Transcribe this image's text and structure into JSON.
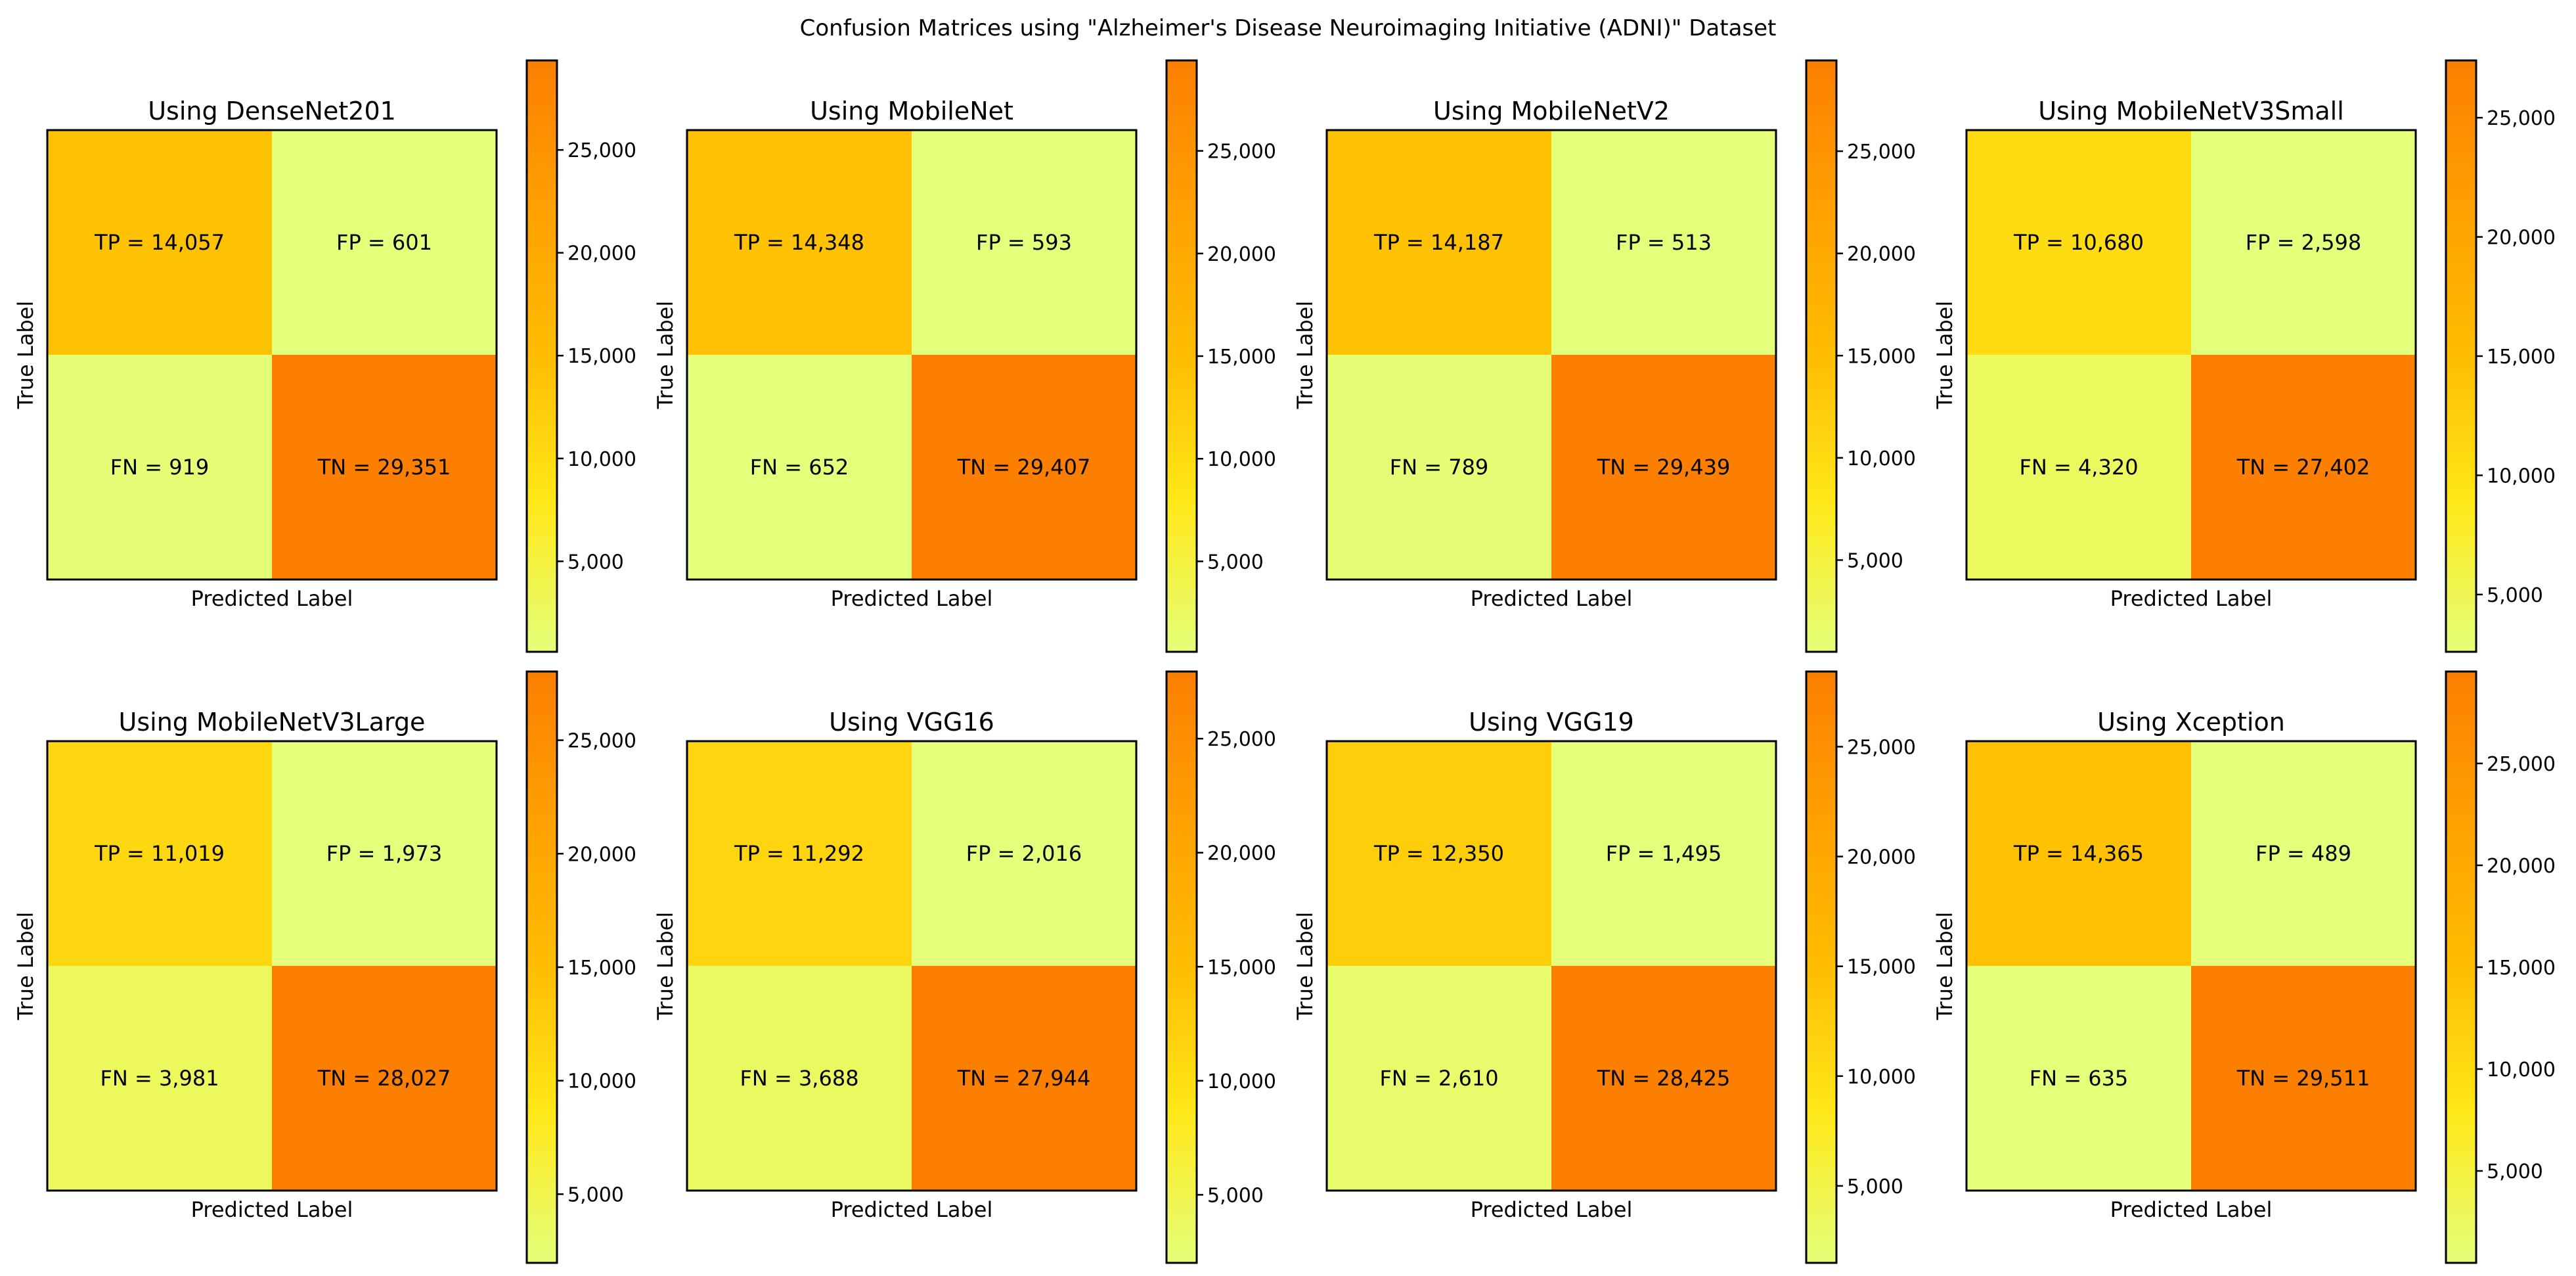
{
  "suptitle": "Confusion Matrices using \"Alzheimer's Disease Neuroimaging Initiative (ADNI)\" Dataset",
  "colormap": {
    "name": "Wistia",
    "stops": [
      "#e4ff7a",
      "#ffe81a",
      "#ffbd00",
      "#ffa000",
      "#fc7f00"
    ]
  },
  "chart_data": [
    {
      "type": "heatmap",
      "title": "Using DenseNet201",
      "xlabel": "Predicted Label",
      "ylabel": "True Label",
      "cells": [
        {
          "label": "TP",
          "value": 14057,
          "text": "TP = 14,057"
        },
        {
          "label": "FP",
          "value": 601,
          "text": "FP = 601"
        },
        {
          "label": "FN",
          "value": 919,
          "text": "FN = 919"
        },
        {
          "label": "TN",
          "value": 29351,
          "text": "TN = 29,351"
        }
      ],
      "colorbar_ticks": [
        {
          "value": 5000,
          "label": "5,000"
        },
        {
          "value": 10000,
          "label": "10,000"
        },
        {
          "value": 15000,
          "label": "15,000"
        },
        {
          "value": 20000,
          "label": "20,000"
        },
        {
          "value": 25000,
          "label": "25,000"
        }
      ]
    },
    {
      "type": "heatmap",
      "title": "Using MobileNet",
      "xlabel": "Predicted Label",
      "ylabel": "True Label",
      "cells": [
        {
          "label": "TP",
          "value": 14348,
          "text": "TP = 14,348"
        },
        {
          "label": "FP",
          "value": 593,
          "text": "FP = 593"
        },
        {
          "label": "FN",
          "value": 652,
          "text": "FN = 652"
        },
        {
          "label": "TN",
          "value": 29407,
          "text": "TN = 29,407"
        }
      ],
      "colorbar_ticks": [
        {
          "value": 5000,
          "label": "5,000"
        },
        {
          "value": 10000,
          "label": "10,000"
        },
        {
          "value": 15000,
          "label": "15,000"
        },
        {
          "value": 20000,
          "label": "20,000"
        },
        {
          "value": 25000,
          "label": "25,000"
        }
      ]
    },
    {
      "type": "heatmap",
      "title": "Using MobileNetV2",
      "xlabel": "Predicted Label",
      "ylabel": "True Label",
      "cells": [
        {
          "label": "TP",
          "value": 14187,
          "text": "TP = 14,187"
        },
        {
          "label": "FP",
          "value": 513,
          "text": "FP = 513"
        },
        {
          "label": "FN",
          "value": 789,
          "text": "FN = 789"
        },
        {
          "label": "TN",
          "value": 29439,
          "text": "TN = 29,439"
        }
      ],
      "colorbar_ticks": [
        {
          "value": 5000,
          "label": "5,000"
        },
        {
          "value": 10000,
          "label": "10,000"
        },
        {
          "value": 15000,
          "label": "15,000"
        },
        {
          "value": 20000,
          "label": "20,000"
        },
        {
          "value": 25000,
          "label": "25,000"
        }
      ]
    },
    {
      "type": "heatmap",
      "title": "Using MobileNetV3Small",
      "xlabel": "Predicted Label",
      "ylabel": "True Label",
      "cells": [
        {
          "label": "TP",
          "value": 10680,
          "text": "TP = 10,680"
        },
        {
          "label": "FP",
          "value": 2598,
          "text": "FP = 2,598"
        },
        {
          "label": "FN",
          "value": 4320,
          "text": "FN = 4,320"
        },
        {
          "label": "TN",
          "value": 27402,
          "text": "TN = 27,402"
        }
      ],
      "colorbar_ticks": [
        {
          "value": 5000,
          "label": "5,000"
        },
        {
          "value": 10000,
          "label": "10,000"
        },
        {
          "value": 15000,
          "label": "15,000"
        },
        {
          "value": 20000,
          "label": "20,000"
        },
        {
          "value": 25000,
          "label": "25,000"
        }
      ]
    },
    {
      "type": "heatmap",
      "title": "Using MobileNetV3Large",
      "xlabel": "Predicted Label",
      "ylabel": "True Label",
      "cells": [
        {
          "label": "TP",
          "value": 11019,
          "text": "TP = 11,019"
        },
        {
          "label": "FP",
          "value": 1973,
          "text": "FP = 1,973"
        },
        {
          "label": "FN",
          "value": 3981,
          "text": "FN = 3,981"
        },
        {
          "label": "TN",
          "value": 28027,
          "text": "TN = 28,027"
        }
      ],
      "colorbar_ticks": [
        {
          "value": 5000,
          "label": "5,000"
        },
        {
          "value": 10000,
          "label": "10,000"
        },
        {
          "value": 15000,
          "label": "15,000"
        },
        {
          "value": 20000,
          "label": "20,000"
        },
        {
          "value": 25000,
          "label": "25,000"
        }
      ]
    },
    {
      "type": "heatmap",
      "title": "Using VGG16",
      "xlabel": "Predicted Label",
      "ylabel": "True Label",
      "cells": [
        {
          "label": "TP",
          "value": 11292,
          "text": "TP = 11,292"
        },
        {
          "label": "FP",
          "value": 2016,
          "text": "FP = 2,016"
        },
        {
          "label": "FN",
          "value": 3688,
          "text": "FN = 3,688"
        },
        {
          "label": "TN",
          "value": 27944,
          "text": "TN = 27,944"
        }
      ],
      "colorbar_ticks": [
        {
          "value": 5000,
          "label": "5,000"
        },
        {
          "value": 10000,
          "label": "10,000"
        },
        {
          "value": 15000,
          "label": "15,000"
        },
        {
          "value": 20000,
          "label": "20,000"
        },
        {
          "value": 25000,
          "label": "25,000"
        }
      ]
    },
    {
      "type": "heatmap",
      "title": "Using VGG19",
      "xlabel": "Predicted Label",
      "ylabel": "True Label",
      "cells": [
        {
          "label": "TP",
          "value": 12350,
          "text": "TP = 12,350"
        },
        {
          "label": "FP",
          "value": 1495,
          "text": "FP = 1,495"
        },
        {
          "label": "FN",
          "value": 2610,
          "text": "FN = 2,610"
        },
        {
          "label": "TN",
          "value": 28425,
          "text": "TN = 28,425"
        }
      ],
      "colorbar_ticks": [
        {
          "value": 5000,
          "label": "5,000"
        },
        {
          "value": 10000,
          "label": "10,000"
        },
        {
          "value": 15000,
          "label": "15,000"
        },
        {
          "value": 20000,
          "label": "20,000"
        },
        {
          "value": 25000,
          "label": "25,000"
        }
      ]
    },
    {
      "type": "heatmap",
      "title": "Using Xception",
      "xlabel": "Predicted Label",
      "ylabel": "True Label",
      "cells": [
        {
          "label": "TP",
          "value": 14365,
          "text": "TP = 14,365"
        },
        {
          "label": "FP",
          "value": 489,
          "text": "FP = 489"
        },
        {
          "label": "FN",
          "value": 635,
          "text": "FN = 635"
        },
        {
          "label": "TN",
          "value": 29511,
          "text": "TN = 29,511"
        }
      ],
      "colorbar_ticks": [
        {
          "value": 5000,
          "label": "5,000"
        },
        {
          "value": 10000,
          "label": "10,000"
        },
        {
          "value": 15000,
          "label": "15,000"
        },
        {
          "value": 20000,
          "label": "20,000"
        },
        {
          "value": 25000,
          "label": "25,000"
        }
      ]
    }
  ]
}
